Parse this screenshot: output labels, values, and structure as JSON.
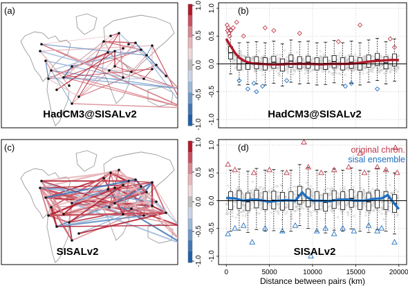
{
  "panels": {
    "a": {
      "letter": "(a)",
      "caption": "HadCM3@SISALv2"
    },
    "b": {
      "letter": "(b)",
      "caption": "HadCM3@SISALv2"
    },
    "c": {
      "letter": "(c)",
      "caption": "SISALv2"
    },
    "d": {
      "letter": "(d)",
      "caption": "SISALv2",
      "legend": [
        {
          "label": "original chron.",
          "color": "#c0394b"
        },
        {
          "label": "sisal ensemble",
          "color": "#1f6fbf"
        }
      ]
    }
  },
  "colorbar": {
    "ticks": [
      "1.0",
      "0.5",
      "0.0",
      "-0.5",
      "-1.0"
    ],
    "colors": [
      "#b2182b",
      "#c8515e",
      "#d98891",
      "#e6b6ba",
      "#f0d8da",
      "#bdbdbd",
      "#c9d6e8",
      "#9db9d9",
      "#6f98c8",
      "#4377b5",
      "#1f5fa8"
    ]
  },
  "chart_data": [
    {
      "type": "scatter",
      "panel": "b",
      "title": "HadCM3@SISALv2",
      "ylim": [
        -1.15,
        1.1
      ],
      "yticks": [
        "1.0",
        "0.5",
        "0.0",
        "-0.5",
        "-1.0"
      ],
      "xlim": [
        -900,
        20900
      ],
      "grid": true,
      "smooth_line": {
        "name": "",
        "x": [
          0,
          300,
          600,
          1000,
          1500,
          2000,
          2500,
          3000,
          4000,
          5000,
          6000,
          7000,
          8000,
          9000,
          10000,
          11000,
          12000,
          13000,
          14000,
          15000,
          16000,
          17000,
          18000,
          19000,
          20000
        ],
        "y": [
          0.45,
          0.37,
          0.3,
          0.2,
          0.11,
          0.06,
          0.03,
          0.01,
          0.0,
          -0.01,
          -0.01,
          0.0,
          0.0,
          0.0,
          0.0,
          -0.01,
          0.0,
          0.0,
          0.0,
          0.01,
          0.03,
          0.05,
          0.06,
          0.07,
          0.07
        ]
      },
      "box_medians": [
        0.2,
        0.0,
        0.01,
        0.02,
        0.0,
        0.03,
        -0.02,
        0.05,
        0.02,
        0.03,
        0.0,
        0.01,
        0.04,
        0.0,
        0.03,
        0.0,
        0.05,
        0.08,
        0.02,
        0.07
      ],
      "high_points": {
        "x": [
          100,
          150,
          250,
          300,
          400,
          500,
          800,
          1200,
          2000,
          4500,
          5500,
          8500,
          13000,
          15500,
          19000,
          19500
        ],
        "y": [
          0.7,
          0.6,
          0.65,
          0.55,
          0.5,
          0.6,
          0.65,
          0.75,
          0.5,
          0.65,
          0.6,
          0.55,
          0.4,
          0.7,
          0.45,
          0.3
        ]
      },
      "low_points": {
        "x": [
          1500,
          2500,
          3200,
          3500,
          4200,
          7000,
          13800,
          14500,
          17500
        ],
        "y": [
          -0.3,
          -0.45,
          -0.35,
          -0.5,
          -0.4,
          -0.3,
          -0.4,
          -0.35,
          -0.45
        ]
      },
      "series_colors": [
        "#c0394b",
        "#1f6fbf"
      ]
    },
    {
      "type": "scatter",
      "panel": "d",
      "title": "SISALv2",
      "xlabel": "Distance between pairs (km)",
      "xticks": [
        "0",
        "5000",
        "10000",
        "15000",
        "20000"
      ],
      "ylim": [
        -1.15,
        1.1
      ],
      "yticks": [
        "1.0",
        "0.5",
        "0.0",
        "-0.5",
        "-1.0"
      ],
      "xlim": [
        -900,
        20900
      ],
      "grid": true,
      "legend_position": "top-right",
      "smooth_line": {
        "name": "",
        "x": [
          0,
          1000,
          2000,
          3000,
          4000,
          5000,
          6000,
          7000,
          8000,
          8800,
          9200,
          10000,
          11000,
          12000,
          13000,
          14000,
          15000,
          16000,
          17000,
          18000,
          18700,
          19200,
          20000
        ],
        "y": [
          0.05,
          0.04,
          0.0,
          0.02,
          0.01,
          -0.02,
          0.0,
          0.01,
          0.0,
          0.15,
          0.08,
          0.0,
          0.0,
          -0.01,
          0.02,
          0.02,
          0.0,
          0.0,
          0.03,
          0.04,
          0.1,
          0.0,
          -0.15
        ]
      },
      "box_medians": [
        0.0,
        0.02,
        -0.02,
        0.03,
        0.0,
        0.01,
        -0.01,
        0.0,
        0.1,
        0.05,
        0.0,
        -0.03,
        0.02,
        0.0,
        0.04,
        0.0,
        -0.02,
        0.03,
        0.0,
        -0.05
      ],
      "high_points": {
        "x": [
          200,
          1000,
          3200,
          5000,
          7000,
          9000,
          9500,
          11000,
          12500,
          14200,
          15500,
          16000,
          17500,
          18500,
          19600,
          19800
        ],
        "y": [
          0.65,
          0.55,
          0.5,
          0.55,
          0.5,
          1.05,
          0.6,
          0.5,
          0.55,
          0.6,
          0.85,
          0.5,
          0.6,
          0.55,
          0.95,
          0.5
        ]
      },
      "low_points": {
        "x": [
          200,
          1000,
          2000,
          3000,
          4500,
          6500,
          8000,
          9800,
          10500,
          11500,
          12500,
          13500,
          14800,
          16500,
          17500,
          18000,
          19500
        ],
        "y": [
          -0.6,
          -0.5,
          -0.45,
          -0.75,
          -0.5,
          -0.55,
          -0.45,
          -1.0,
          -0.55,
          -0.5,
          -0.6,
          -0.5,
          -0.55,
          -0.45,
          -0.55,
          -0.5,
          -0.75
        ]
      },
      "series_colors": [
        "#c0394b",
        "#1f6fbf"
      ]
    }
  ]
}
